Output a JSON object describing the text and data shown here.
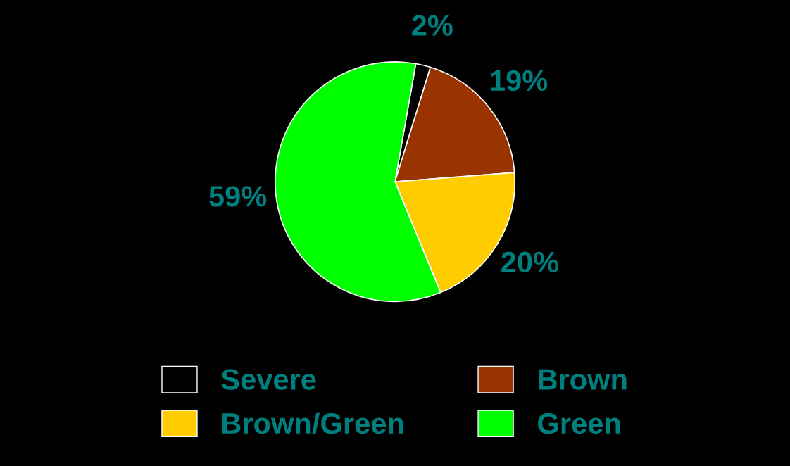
{
  "chart_data": {
    "type": "pie",
    "categories": [
      "Severe",
      "Brown",
      "Brown/Green",
      "Green"
    ],
    "values": [
      2,
      19,
      20,
      59
    ],
    "colors": [
      "#000000",
      "#993300",
      "#ffcc00",
      "#00ff00"
    ],
    "value_labels": [
      "2%",
      "19%",
      "20%",
      "59%"
    ],
    "legend": "bottom"
  }
}
